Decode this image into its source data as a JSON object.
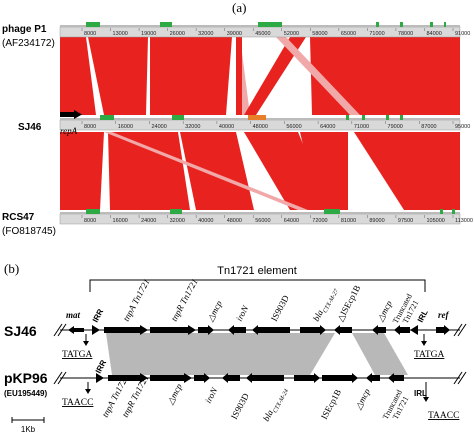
{
  "panel_a": {
    "label": "(a)",
    "tracks": [
      {
        "name": "phage P1",
        "accession": "(AF234172)"
      },
      {
        "name": "SJ46",
        "accession": ""
      },
      {
        "name": "RCS47",
        "accession": "(FO818745)"
      }
    ],
    "ticks_top": [
      "8000",
      "13000",
      "19000",
      "26000",
      "32000",
      "39000",
      "45000",
      "52000",
      "58000",
      "65000",
      "71000",
      "78000",
      "84000",
      "91000"
    ],
    "ticks_mid": [
      "8000",
      "16000",
      "24000",
      "32000",
      "40000",
      "48000",
      "56000",
      "64000",
      "71000",
      "79000",
      "87000",
      "95000"
    ],
    "ticks_bot": [
      "8000",
      "16000",
      "24000",
      "32000",
      "40000",
      "48000",
      "56000",
      "64000",
      "72000",
      "81000",
      "89000",
      "97500",
      "105000",
      "113000"
    ],
    "repA_label": "repA",
    "colors": {
      "match": "#e8231f",
      "inverted": "#f0a8a8",
      "gene": "#2eaa45",
      "orange": "#e87d2a"
    }
  },
  "panel_b": {
    "label": "(b)",
    "element_label": "Tn1721 element",
    "top_name": "SJ46",
    "bottom_name": "pKP96",
    "bottom_accession": "(EU195449)",
    "scale_label": "1Kb",
    "top_genes": [
      "mat",
      "IRR",
      "tnpA Tn1721",
      "tnpR Tn1721",
      "△mcp",
      "iroN",
      "IS903D",
      "bla",
      "△ISEcp1B",
      "△mcp",
      "Truncated",
      "Tn1721",
      "IRL",
      "ref"
    ],
    "top_bla_sub": "CTX-M-27",
    "bottom_genes": [
      "IRR",
      "tnpA Tn1721",
      "tnpR Tn1721",
      "△mcp",
      "iroN",
      "IS903D",
      "bla",
      "ISEcp1B",
      "△mcp",
      "Truncated",
      "Tn1721",
      "IRL"
    ],
    "bottom_bla_sub": "CTX-M-24",
    "seq_top_left": "TATGA",
    "seq_top_right": "TATGA",
    "seq_bot_left": "TAACC",
    "seq_bot_right": "TAACC"
  }
}
